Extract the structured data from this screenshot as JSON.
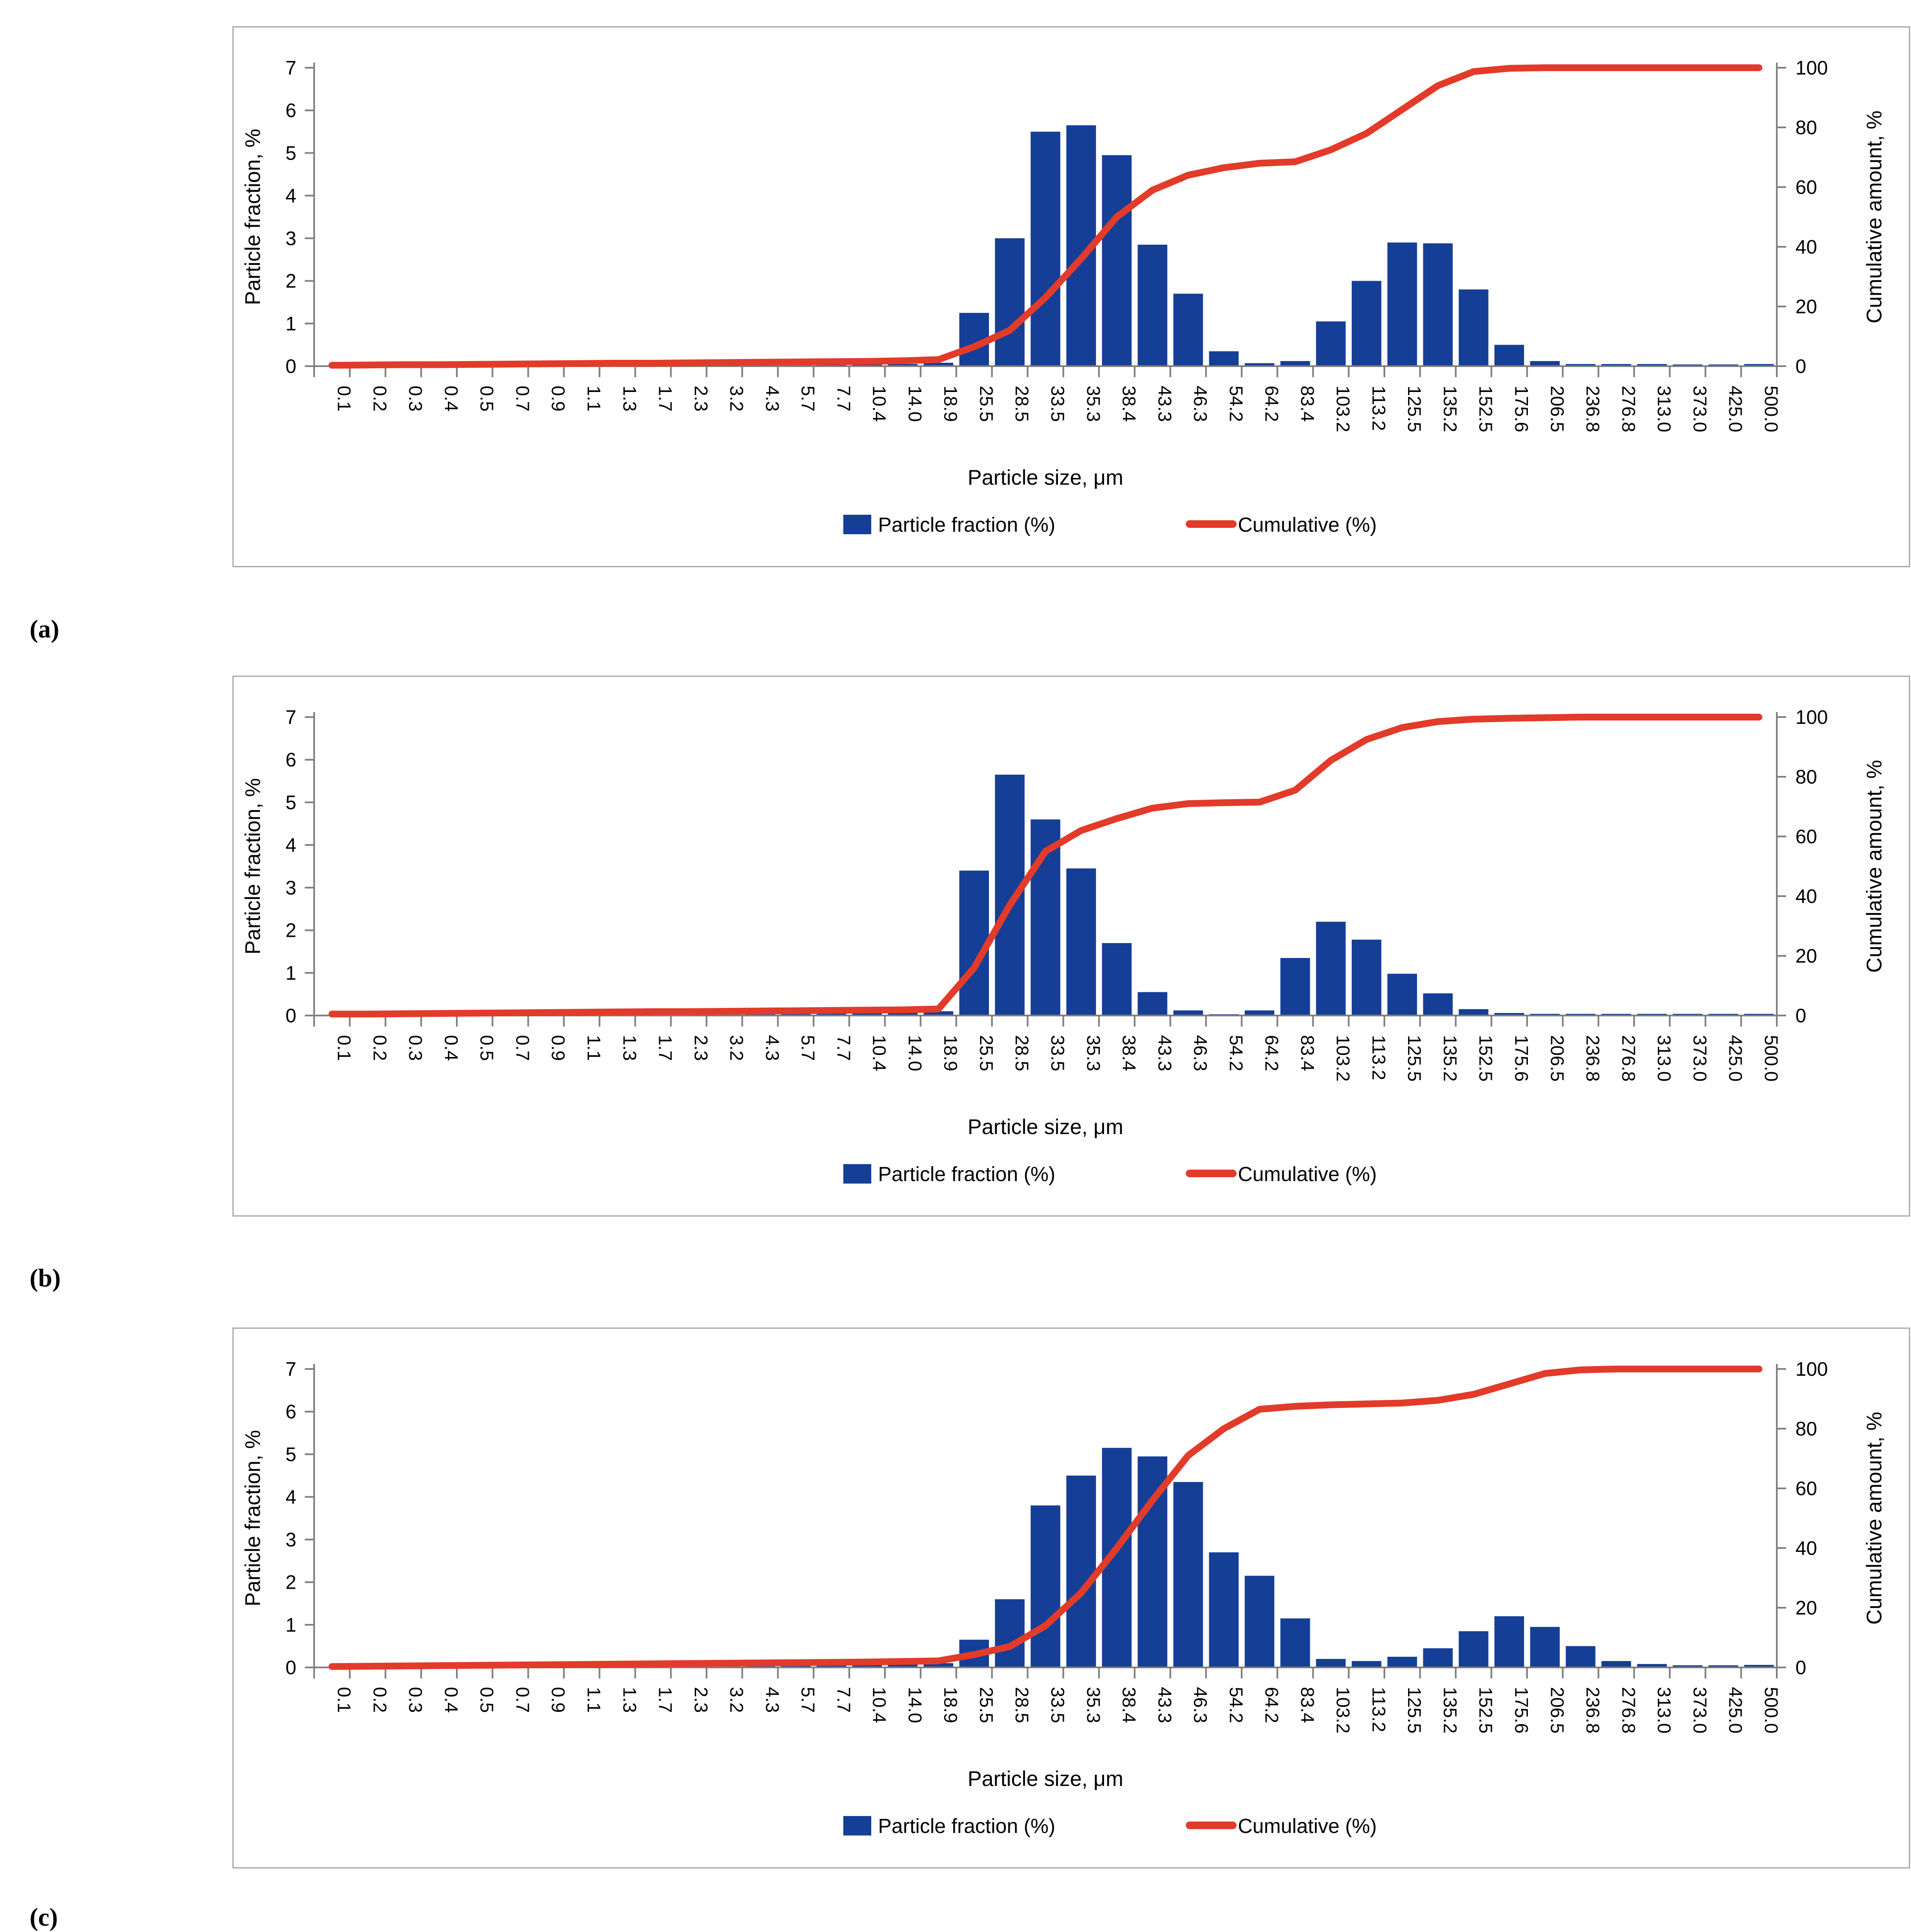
{
  "colors": {
    "bar_blue": "#153E96",
    "line_red": "#E23B2A",
    "axis_gray": "#7f7f7f",
    "panel_border": "#a9a9a9",
    "text_black": "#000000"
  },
  "panels": [
    {
      "label": "(a)"
    },
    {
      "label": "(b)"
    },
    {
      "label": "(c)"
    }
  ],
  "chart_data": [
    {
      "type": "bar",
      "panel": "a",
      "xlabel": "Particle size, μm",
      "ylabel_left": "Particle fraction, %",
      "ylabel_right": "Cumulative amount, %",
      "legend": [
        "Particle fraction (%)",
        "Cumulative (%)"
      ],
      "ylim_left": [
        0,
        7
      ],
      "ylim_right": [
        0,
        100
      ],
      "yticks_left": [
        0,
        1,
        2,
        3,
        4,
        5,
        6,
        7
      ],
      "yticks_right": [
        0,
        20,
        40,
        60,
        80,
        100
      ],
      "grid": false,
      "legend_position": "bottom",
      "categories": [
        "0.1",
        "0.2",
        "0.3",
        "0.4",
        "0.5",
        "0.7",
        "0.9",
        "1.1",
        "1.3",
        "1.7",
        "2.3",
        "3.2",
        "4.3",
        "5.7",
        "7.7",
        "10.4",
        "14.0",
        "18.9",
        "25.5",
        "28.5",
        "33.5",
        "35.3",
        "38.4",
        "43.3",
        "46.3",
        "54.2",
        "64.2",
        "83.4",
        "103.2",
        "113.2",
        "125.5",
        "135.2",
        "152.5",
        "175.6",
        "206.5",
        "236.8",
        "276.8",
        "313.0",
        "373.0",
        "425.0",
        "500.0"
      ],
      "series": [
        {
          "name": "Particle fraction (%)",
          "type": "bar",
          "axis": "left",
          "values": [
            0.02,
            0.02,
            0.02,
            0.02,
            0.03,
            0.03,
            0.03,
            0.03,
            0.03,
            0.03,
            0.03,
            0.03,
            0.04,
            0.04,
            0.04,
            0.05,
            0.05,
            0.08,
            1.25,
            3.0,
            5.5,
            5.65,
            4.95,
            2.85,
            1.7,
            0.35,
            0.07,
            0.12,
            1.05,
            2.0,
            2.9,
            2.88,
            1.8,
            0.5,
            0.12,
            0.05,
            0.05,
            0.05,
            0.04,
            0.04,
            0.05
          ]
        },
        {
          "name": "Cumulative (%)",
          "type": "line",
          "axis": "right",
          "values": [
            0.3,
            0.4,
            0.5,
            0.5,
            0.6,
            0.7,
            0.8,
            0.9,
            1.0,
            1.0,
            1.1,
            1.2,
            1.3,
            1.4,
            1.5,
            1.6,
            1.8,
            2.2,
            6.5,
            12,
            23,
            36,
            50,
            59,
            64,
            66.5,
            68,
            68.5,
            72.5,
            78,
            86,
            94,
            98.7,
            99.8,
            100,
            100,
            100,
            100,
            100,
            100,
            100
          ]
        }
      ]
    },
    {
      "type": "bar",
      "panel": "b",
      "xlabel": "Particle size, μm",
      "ylabel_left": "Particle fraction, %",
      "ylabel_right": "Cumulative amount, %",
      "legend": [
        "Particle fraction (%)",
        "Cumulative (%)"
      ],
      "ylim_left": [
        0,
        7
      ],
      "ylim_right": [
        0,
        100
      ],
      "yticks_left": [
        0,
        1,
        2,
        3,
        4,
        5,
        6,
        7
      ],
      "yticks_right": [
        0,
        20,
        40,
        60,
        80,
        100
      ],
      "grid": false,
      "legend_position": "bottom",
      "categories": [
        "0.1",
        "0.2",
        "0.3",
        "0.4",
        "0.5",
        "0.7",
        "0.9",
        "1.1",
        "1.3",
        "1.7",
        "2.3",
        "3.2",
        "4.3",
        "5.7",
        "7.7",
        "10.4",
        "14.0",
        "18.9",
        "25.5",
        "28.5",
        "33.5",
        "35.3",
        "38.4",
        "43.3",
        "46.3",
        "54.2",
        "64.2",
        "83.4",
        "103.2",
        "113.2",
        "125.5",
        "135.2",
        "152.5",
        "175.6",
        "206.5",
        "236.8",
        "276.8",
        "313.0",
        "373.0",
        "425.0",
        "500.0"
      ],
      "series": [
        {
          "name": "Particle fraction (%)",
          "type": "bar",
          "axis": "left",
          "values": [
            0.02,
            0.02,
            0.02,
            0.02,
            0.02,
            0.03,
            0.03,
            0.03,
            0.05,
            0.05,
            0.05,
            0.05,
            0.05,
            0.05,
            0.06,
            0.06,
            0.07,
            0.1,
            3.4,
            5.65,
            4.6,
            3.45,
            1.7,
            0.55,
            0.12,
            0.03,
            0.12,
            1.35,
            2.2,
            1.78,
            0.98,
            0.52,
            0.15,
            0.06,
            0.04,
            0.04,
            0.04,
            0.04,
            0.04,
            0.04,
            0.04
          ]
        },
        {
          "name": "Cumulative (%)",
          "type": "line",
          "axis": "right",
          "values": [
            0.5,
            0.5,
            0.6,
            0.7,
            0.8,
            0.9,
            1.0,
            1.1,
            1.2,
            1.3,
            1.3,
            1.4,
            1.5,
            1.6,
            1.7,
            1.8,
            1.9,
            2.2,
            16,
            37,
            55,
            62,
            66,
            69.5,
            71,
            71.3,
            71.5,
            75.5,
            85.5,
            92.5,
            96.5,
            98.5,
            99.3,
            99.6,
            99.8,
            100,
            100,
            100,
            100,
            100,
            100
          ]
        }
      ]
    },
    {
      "type": "bar",
      "panel": "c",
      "xlabel": "Particle size, μm",
      "ylabel_left": "Particle fraction, %",
      "ylabel_right": "Cumulative amount, %",
      "legend": [
        "Particle fraction (%)",
        "Cumulative (%)"
      ],
      "ylim_left": [
        0,
        7
      ],
      "ylim_right": [
        0,
        100
      ],
      "yticks_left": [
        0,
        1,
        2,
        3,
        4,
        5,
        6,
        7
      ],
      "yticks_right": [
        0,
        20,
        40,
        60,
        80,
        100
      ],
      "grid": false,
      "legend_position": "bottom",
      "categories": [
        "0.1",
        "0.2",
        "0.3",
        "0.4",
        "0.5",
        "0.7",
        "0.9",
        "1.1",
        "1.3",
        "1.7",
        "2.3",
        "3.2",
        "4.3",
        "5.7",
        "7.7",
        "10.4",
        "14.0",
        "18.9",
        "25.5",
        "28.5",
        "33.5",
        "35.3",
        "38.4",
        "43.3",
        "46.3",
        "54.2",
        "64.2",
        "83.4",
        "103.2",
        "113.2",
        "125.5",
        "135.2",
        "152.5",
        "175.6",
        "206.5",
        "236.8",
        "276.8",
        "313.0",
        "373.0",
        "425.0",
        "500.0"
      ],
      "series": [
        {
          "name": "Particle fraction (%)",
          "type": "bar",
          "axis": "left",
          "values": [
            0.02,
            0.02,
            0.02,
            0.02,
            0.02,
            0.02,
            0.03,
            0.03,
            0.03,
            0.03,
            0.04,
            0.04,
            0.05,
            0.05,
            0.05,
            0.06,
            0.07,
            0.1,
            0.65,
            1.6,
            3.8,
            4.5,
            5.15,
            4.95,
            4.35,
            2.7,
            2.15,
            1.15,
            0.2,
            0.15,
            0.25,
            0.45,
            0.85,
            1.2,
            0.95,
            0.5,
            0.15,
            0.08,
            0.05,
            0.05,
            0.06
          ]
        },
        {
          "name": "Cumulative (%)",
          "type": "line",
          "axis": "right",
          "values": [
            0.3,
            0.4,
            0.5,
            0.6,
            0.7,
            0.8,
            0.9,
            1.0,
            1.1,
            1.2,
            1.3,
            1.4,
            1.5,
            1.6,
            1.7,
            1.8,
            2.0,
            2.2,
            4.3,
            7,
            14,
            25,
            40,
            56,
            71,
            80,
            86.5,
            87.5,
            88,
            88.3,
            88.6,
            89.5,
            91.5,
            95,
            98.5,
            99.7,
            100,
            100,
            100,
            100,
            100
          ]
        }
      ]
    }
  ]
}
